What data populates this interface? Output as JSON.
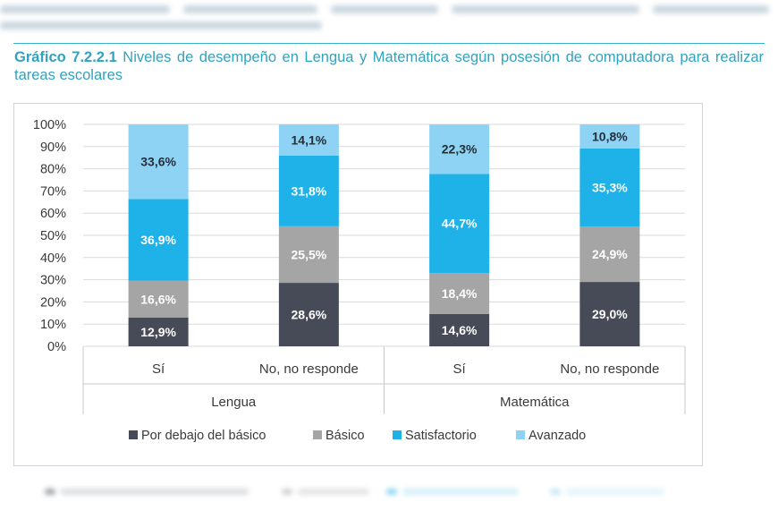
{
  "figure": {
    "label": "Gráfico 7.2.2.1",
    "title": "Niveles de desempeño en Lengua y Matemática según posesión de computadora para realizar tareas escolares"
  },
  "chart_data": {
    "type": "bar",
    "stacked": true,
    "title": "Niveles de desempeño en Lengua y Matemática según posesión de computadora para realizar tareas escolares",
    "ylim": [
      0,
      100
    ],
    "ytick_labels": [
      "0%",
      "10%",
      "20%",
      "30%",
      "40%",
      "50%",
      "60%",
      "70%",
      "80%",
      "90%",
      "100%"
    ],
    "groups": [
      "Lengua",
      "Matemática"
    ],
    "categories": [
      "Sí",
      "No, no responde",
      "Sí",
      "No, no responde"
    ],
    "category_group": [
      "Lengua",
      "Lengua",
      "Matemática",
      "Matemática"
    ],
    "legend_position": "bottom",
    "series": [
      {
        "name": "Por debajo del básico",
        "color": "#474b57",
        "values": [
          12.9,
          28.6,
          14.6,
          29.0
        ],
        "labels": [
          "12,9%",
          "28,6%",
          "14,6%",
          "29,0%"
        ],
        "label_color": "#ffffff"
      },
      {
        "name": "Básico",
        "color": "#a5a5a5",
        "values": [
          16.6,
          25.5,
          18.4,
          24.9
        ],
        "labels": [
          "16,6%",
          "25,5%",
          "18,4%",
          "24,9%"
        ],
        "label_color": "#ffffff"
      },
      {
        "name": "Satisfactorio",
        "color": "#1fb2e8",
        "values": [
          36.9,
          31.8,
          44.7,
          35.3
        ],
        "labels": [
          "36,9%",
          "31,8%",
          "44,7%",
          "35,3%"
        ],
        "label_color": "#ffffff"
      },
      {
        "name": "Avanzado",
        "color": "#8fd3f4",
        "values": [
          33.6,
          14.1,
          22.3,
          10.8
        ],
        "labels": [
          "33,6%",
          "14,1%",
          "22,3%",
          "10,8%"
        ],
        "label_color": "#22303a"
      }
    ]
  }
}
